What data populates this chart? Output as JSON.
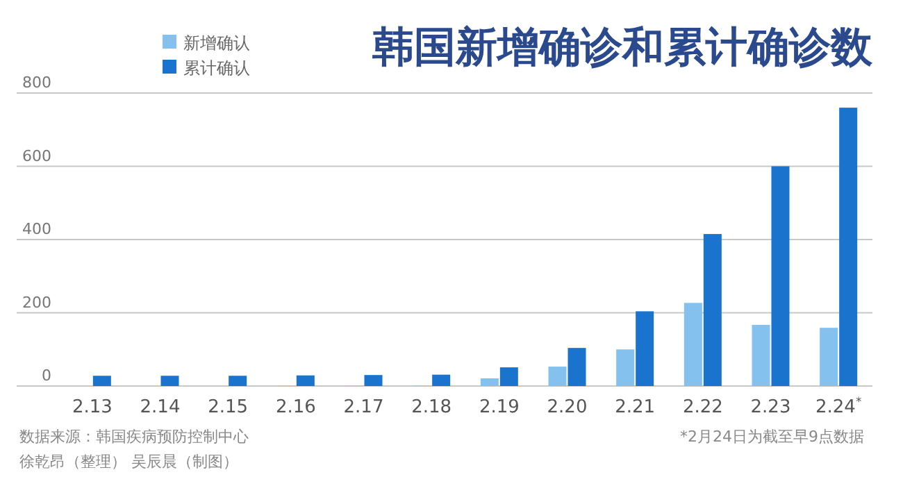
{
  "chart_data": {
    "type": "bar",
    "title": "韩国新增确诊和累计确诊数",
    "categories": [
      "2.13",
      "2.14",
      "2.15",
      "2.16",
      "2.17",
      "2.18",
      "2.19",
      "2.20",
      "2.21",
      "2.22",
      "2.23",
      "2.24$^{*}$"
    ],
    "series": [
      {
        "name": "新增确认",
        "color": "#85c1ef",
        "values": [
          0,
          0,
          0,
          1,
          1,
          1,
          21,
          53,
          100,
          227,
          167,
          159
        ]
      },
      {
        "name": "累计确认",
        "color": "#1a73cc",
        "values": [
          28,
          28,
          28,
          29,
          30,
          31,
          51,
          104,
          204,
          415,
          600,
          760
        ]
      }
    ],
    "ylim": [
      0,
      800
    ],
    "yticks": [
      0,
      200,
      400,
      600,
      800
    ],
    "grid": "y",
    "legend": "top left",
    "annotations": [
      "数据来源：韩国疾病预防控制中心",
      "徐乾昂（整理） 吴辰晨（制图）",
      "*2月24日为截至早9点数据"
    ]
  }
}
